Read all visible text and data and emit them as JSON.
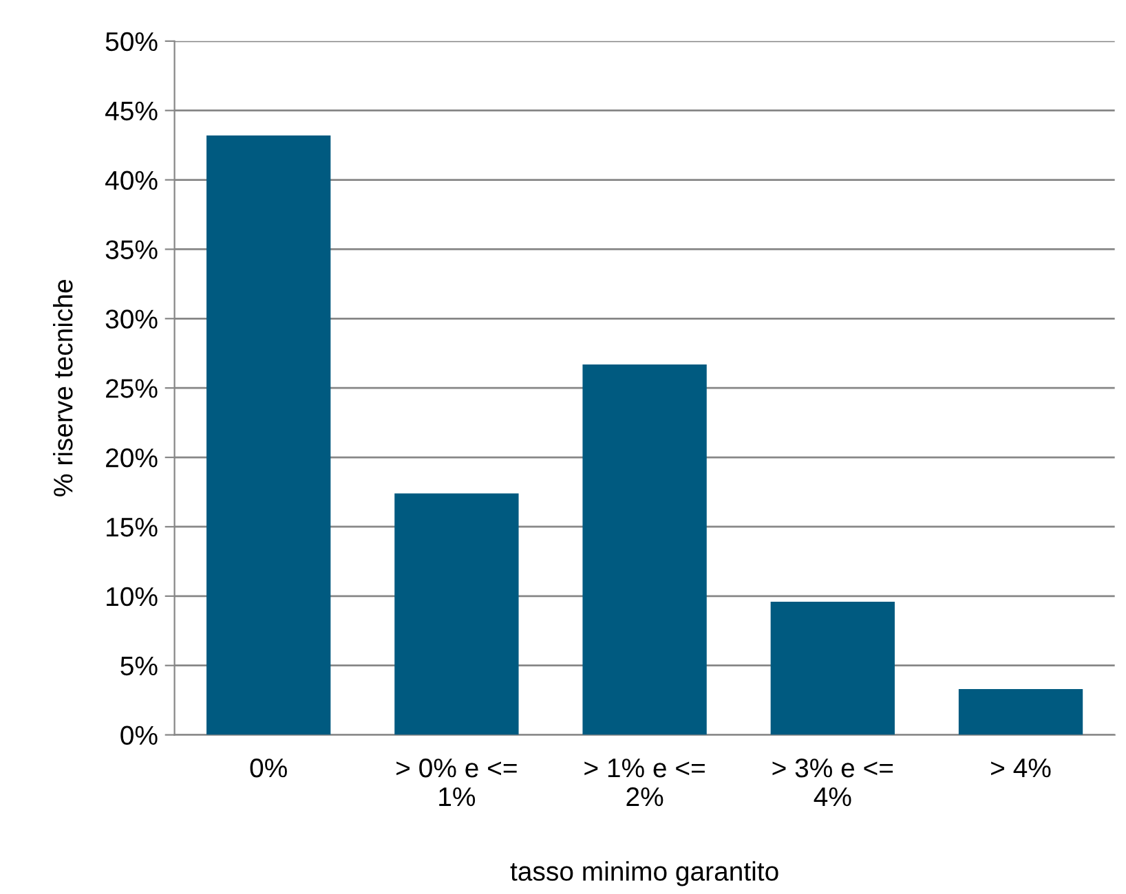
{
  "chart_data": {
    "type": "bar",
    "xlabel": "tasso minimo garantito",
    "ylabel": "% riserve tecniche",
    "categories": [
      "0%",
      "> 0% e <=\n1%",
      "> 1% e <=\n2%",
      "> 3% e <=\n4%",
      "> 4%"
    ],
    "values": [
      43.2,
      17.4,
      26.7,
      9.6,
      3.3
    ],
    "color": "#005a80",
    "ylim": [
      0,
      50
    ],
    "yticks": [
      {
        "value": 0,
        "label": "0%"
      },
      {
        "value": 5,
        "label": "5%"
      },
      {
        "value": 10,
        "label": "10%"
      },
      {
        "value": 15,
        "label": "15%"
      },
      {
        "value": 20,
        "label": "20%"
      },
      {
        "value": 25,
        "label": "25%"
      },
      {
        "value": 30,
        "label": "30%"
      },
      {
        "value": 35,
        "label": "35%"
      },
      {
        "value": 40,
        "label": "40%"
      },
      {
        "value": 45,
        "label": "45%"
      },
      {
        "value": 50,
        "label": "50%"
      }
    ],
    "grid": "y",
    "legend": false
  }
}
